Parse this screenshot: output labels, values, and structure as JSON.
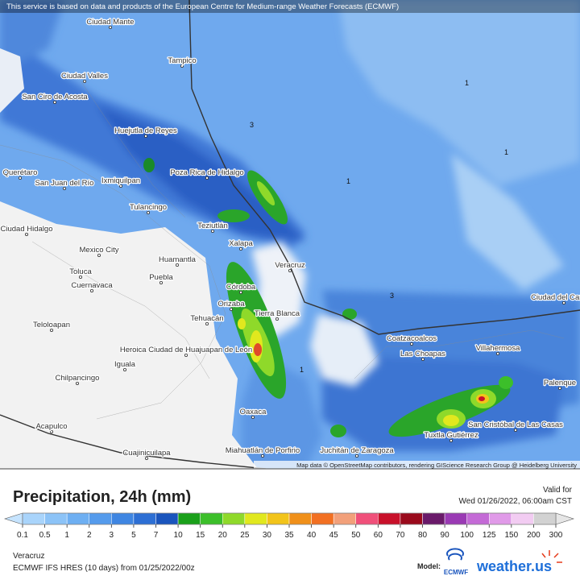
{
  "header": {
    "notice": "This service is based on data and products of the European Centre for Medium-range Weather Forecasts (ECMWF)"
  },
  "map": {
    "places": [
      "Ciudad Mante",
      "Tampico",
      "Ciudad Valles",
      "San Ciro de Acosta",
      "Huejutla de Reyes",
      "Poza Rica de Hidalgo",
      "Ixmiquilpan",
      "San Juan del Río",
      "Querétaro",
      "Tulancingo",
      "Teziutlán",
      "Xalapa",
      "Ciudad Hidalgo",
      "Mexico City",
      "Toluca",
      "Cuernavaca",
      "Huamantla",
      "Puebla",
      "Veracruz",
      "Córdoba",
      "Orizaba",
      "Tierra Blanca",
      "Tehuacán",
      "Teloloapan",
      "Heroica Ciudad de Huajuapan de León",
      "Iguala",
      "Chilpancingo",
      "Oaxaca",
      "Acapulco",
      "Cuajinicuilapa",
      "Miahuatlán de Porfirio",
      "Juchitán de Zaragoza",
      "Coatzacoalcos",
      "Las Choapas",
      "Villahermosa",
      "Palenque",
      "Ciudad del Carmen",
      "Tuxtla Gutiérrez",
      "San Cristóbal de Las Casas"
    ],
    "contour_labels": [
      "1",
      "1",
      "1",
      "1",
      "3",
      "3"
    ],
    "attribution": "Map data © OpenStreetMap contributors, rendering GIScience Research Group @ Heidelberg University"
  },
  "legend": {
    "title": "Precipitation, 24h (mm)",
    "ticks": [
      0.1,
      0.5,
      1,
      2,
      3,
      5,
      7,
      10,
      15,
      20,
      25,
      30,
      35,
      40,
      45,
      50,
      60,
      70,
      80,
      90,
      100,
      125,
      150,
      200,
      300
    ],
    "colors": [
      "#a9d4fb",
      "#8cc3f7",
      "#6eaff2",
      "#559bec",
      "#3f86e2",
      "#2d6fd4",
      "#1a55bd",
      "#1aa01a",
      "#3cbf2a",
      "#8fd92a",
      "#e1e81e",
      "#f2c41a",
      "#f0901a",
      "#f27022",
      "#f2a07a",
      "#f0507a",
      "#c8102a",
      "#9a0a1c",
      "#6a1a6a",
      "#9a3ab4",
      "#c46ad6",
      "#e09ae8",
      "#f2ccf2",
      "#d2d2d2"
    ],
    "valid_label": "Valid for",
    "valid_time": "Wed 01/26/2022, 06:00am CST"
  },
  "footer": {
    "region": "Veracruz",
    "model_run": "ECMWF IFS HRES (10 days) from 01/25/2022/00z",
    "model_label": "Model:",
    "model_logo": "ECMWF",
    "brand": "weather.us"
  }
}
